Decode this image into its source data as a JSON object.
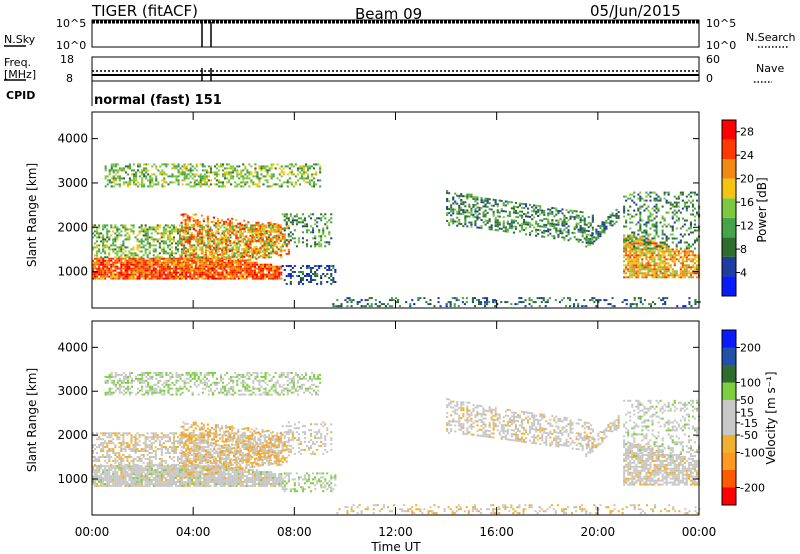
{
  "header": {
    "station": "TIGER (fitACF)",
    "beam": "Beam 09",
    "date": "05/Jun/2015"
  },
  "panels": {
    "nsky": {
      "left_label": "N.Sky",
      "left_ticks": [
        "10^5",
        "10^0"
      ],
      "right_ticks": [
        "10^5",
        "10^0"
      ],
      "right_label": "N.Search"
    },
    "freq": {
      "left_label_1": "Freq.",
      "left_label_2": "[MHz]",
      "left_ticks": [
        "18",
        "8"
      ],
      "right_ticks": [
        "60",
        "0"
      ],
      "right_label": "Nave"
    },
    "cpid": {
      "label": "CPID",
      "value": "normal (fast) 151"
    }
  },
  "colors": {
    "power": [
      "#0a1aff",
      "#1f3da0",
      "#2e6c2f",
      "#47a34a",
      "#7cc83e",
      "#f4c40f",
      "#f08a10",
      "#ff3a00",
      "#ff0000"
    ],
    "velocity": [
      "#ff0000",
      "#ff5a00",
      "#ff9a20",
      "#f0b030",
      "#c8c8c8",
      "#c8c8c8",
      "#7ccf3e",
      "#2e6c2f",
      "#2050a8",
      "#0a1aff"
    ]
  },
  "chart_data": [
    {
      "type": "heatmap",
      "title": "Power",
      "xlabel": "Time UT",
      "ylabel": "Slant Range [km]",
      "x_ticks": [
        "00:00",
        "04:00",
        "08:00",
        "12:00",
        "16:00",
        "20:00",
        "00:00"
      ],
      "y_ticks": [
        1000,
        2000,
        3000,
        4000
      ],
      "xlim_hours": [
        0,
        24
      ],
      "ylim_km": [
        180,
        4600
      ],
      "colorbar": {
        "label": "Power [dB]",
        "ticks": [
          4,
          8,
          12,
          16,
          20,
          24,
          28
        ],
        "range": [
          0,
          30
        ]
      }
    },
    {
      "type": "heatmap",
      "title": "Velocity",
      "xlabel": "Time UT",
      "ylabel": "Slant Range [km]",
      "x_ticks": [
        "00:00",
        "04:00",
        "08:00",
        "12:00",
        "16:00",
        "20:00",
        "00:00"
      ],
      "y_ticks": [
        1000,
        2000,
        3000,
        4000
      ],
      "xlim_hours": [
        0,
        24
      ],
      "ylim_km": [
        180,
        4600
      ],
      "colorbar": {
        "label": "Velocity [m s⁻¹]",
        "ticks": [
          200,
          100,
          50,
          15,
          -15,
          -50,
          -100,
          -200
        ],
        "range": [
          -250,
          250
        ]
      }
    }
  ]
}
